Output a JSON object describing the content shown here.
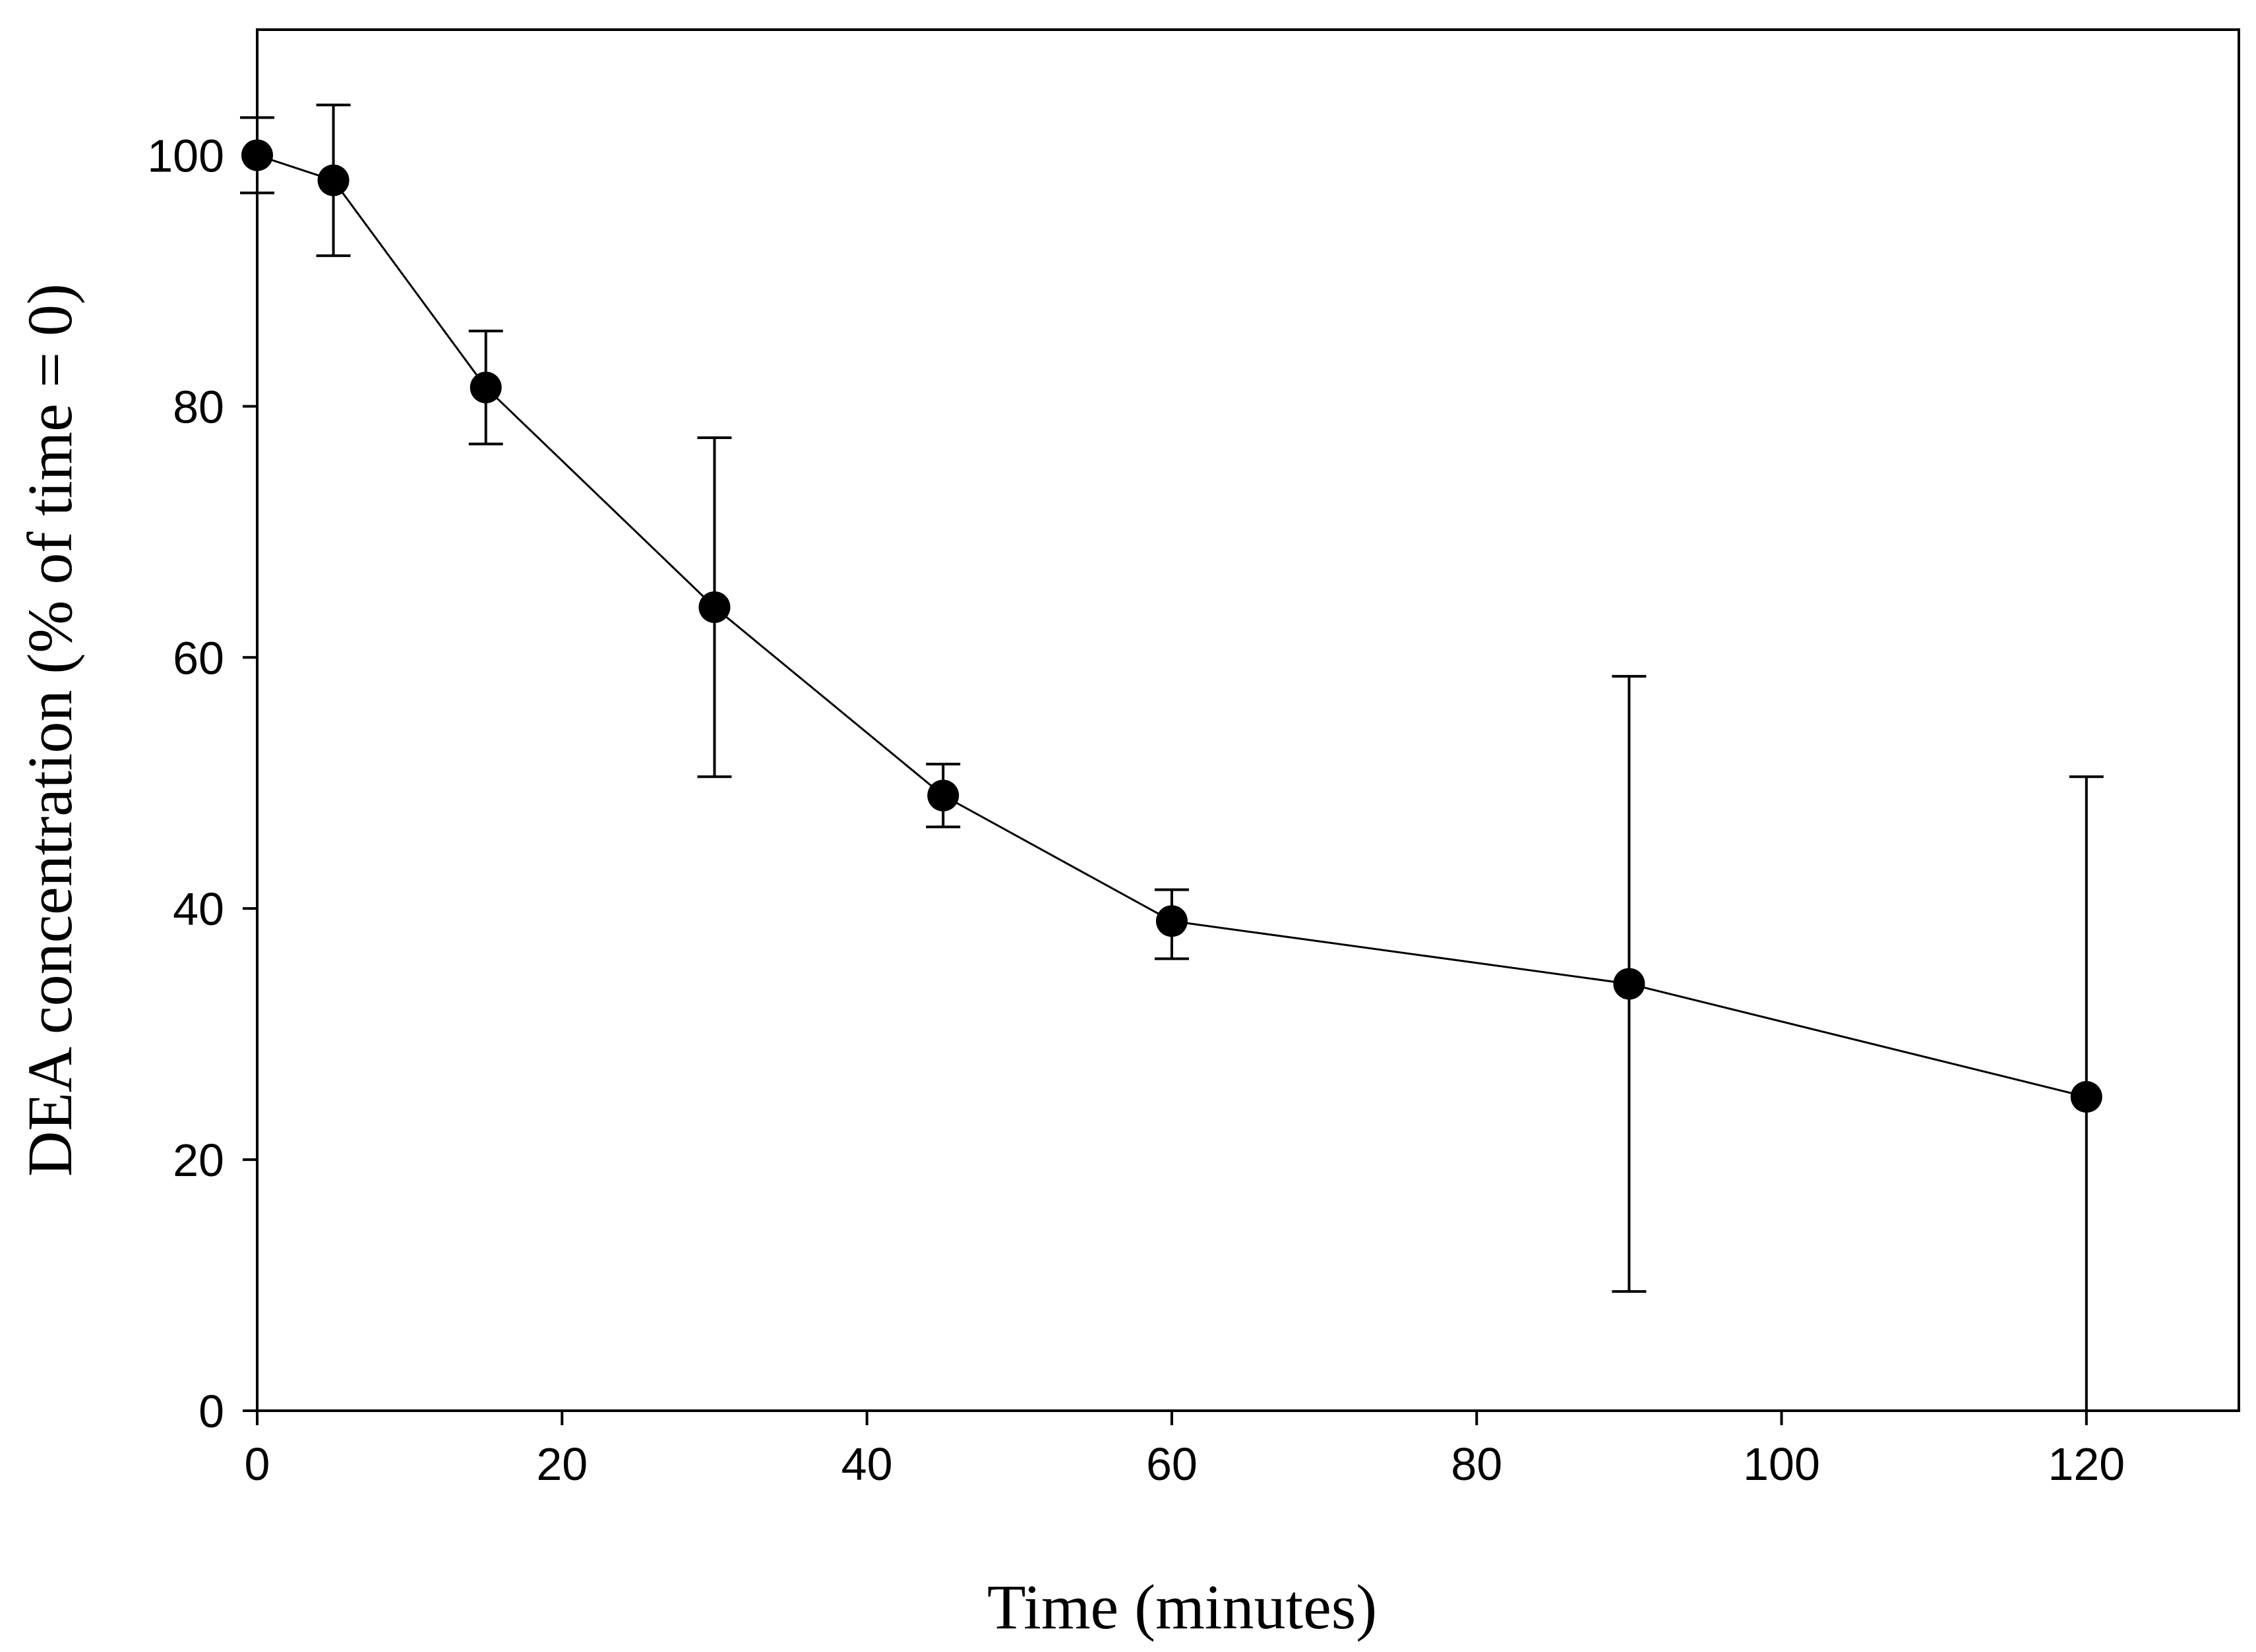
{
  "chart_data": {
    "type": "scatter",
    "title": "",
    "xlabel": "Time (minutes)",
    "ylabel": "DEA concentration (% of time = 0)",
    "xlim": [
      0,
      130
    ],
    "ylim": [
      0,
      110
    ],
    "xticks": [
      0,
      20,
      40,
      60,
      80,
      100,
      120
    ],
    "yticks": [
      0,
      20,
      40,
      60,
      80,
      100
    ],
    "grid": false,
    "legend": "none",
    "series": [
      {
        "name": "DEA",
        "x": [
          0,
          5,
          15,
          30,
          45,
          60,
          90,
          120
        ],
        "y": [
          100,
          98,
          81.5,
          64,
          49,
          39,
          34,
          25
        ],
        "error_low": [
          97,
          92,
          77,
          50.5,
          46.5,
          36,
          9.5,
          0
        ],
        "error_high": [
          103,
          104,
          86,
          77.5,
          51.5,
          41.5,
          58.5,
          50.5
        ],
        "marker": "filled-circle",
        "line": "solid"
      }
    ],
    "colors": {
      "line": "#000000",
      "marker": "#000000",
      "frame": "#000000"
    }
  }
}
